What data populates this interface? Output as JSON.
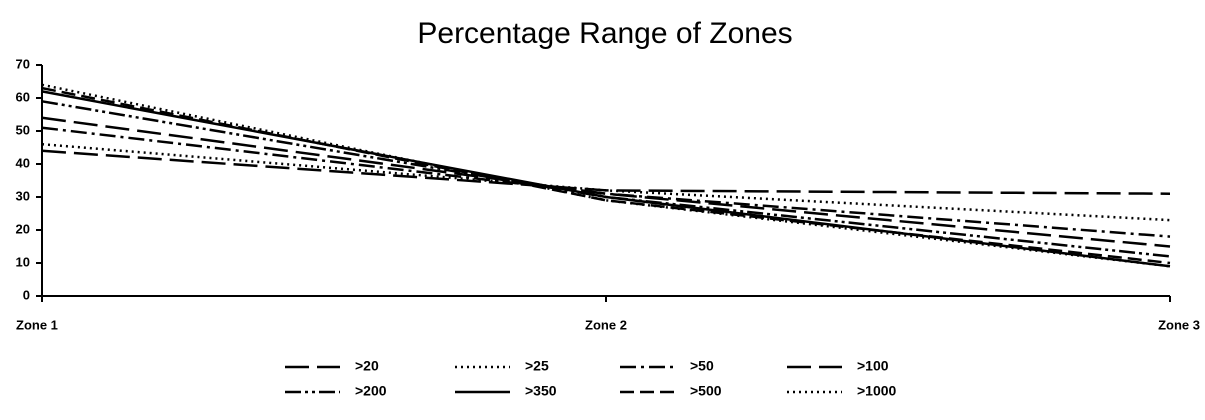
{
  "chart_data": {
    "type": "line",
    "title": "Percentage Range of Zones",
    "categories": [
      "Zone 1",
      "Zone 2",
      "Zone 3"
    ],
    "series": [
      {
        "name": ">20",
        "color": "#000",
        "line_style": "long-dash",
        "values": [
          44,
          32,
          31
        ]
      },
      {
        "name": ">25",
        "color": "#000",
        "line_style": "dotted",
        "values": [
          46,
          32,
          23
        ]
      },
      {
        "name": ">50",
        "color": "#000",
        "line_style": "dash-dot",
        "values": [
          51,
          31,
          18
        ]
      },
      {
        "name": ">100",
        "color": "#000",
        "line_style": "long-dash",
        "values": [
          54,
          31,
          15
        ]
      },
      {
        "name": ">200",
        "color": "#000",
        "line_style": "dash-dot-dot",
        "values": [
          59,
          30,
          12
        ]
      },
      {
        "name": ">350",
        "color": "#000",
        "line_style": "solid",
        "values": [
          62,
          30,
          9
        ]
      },
      {
        "name": ">500",
        "color": "#000",
        "line_style": "dash",
        "values": [
          63,
          29,
          10
        ]
      },
      {
        "name": ">1000",
        "color": "#000",
        "line_style": "dotted",
        "values": [
          64,
          29,
          9
        ]
      }
    ],
    "ylim": [
      0,
      70
    ],
    "yticks": [
      0,
      10,
      20,
      30,
      40,
      50,
      60,
      70
    ],
    "grid": false,
    "legend": "bottom"
  }
}
